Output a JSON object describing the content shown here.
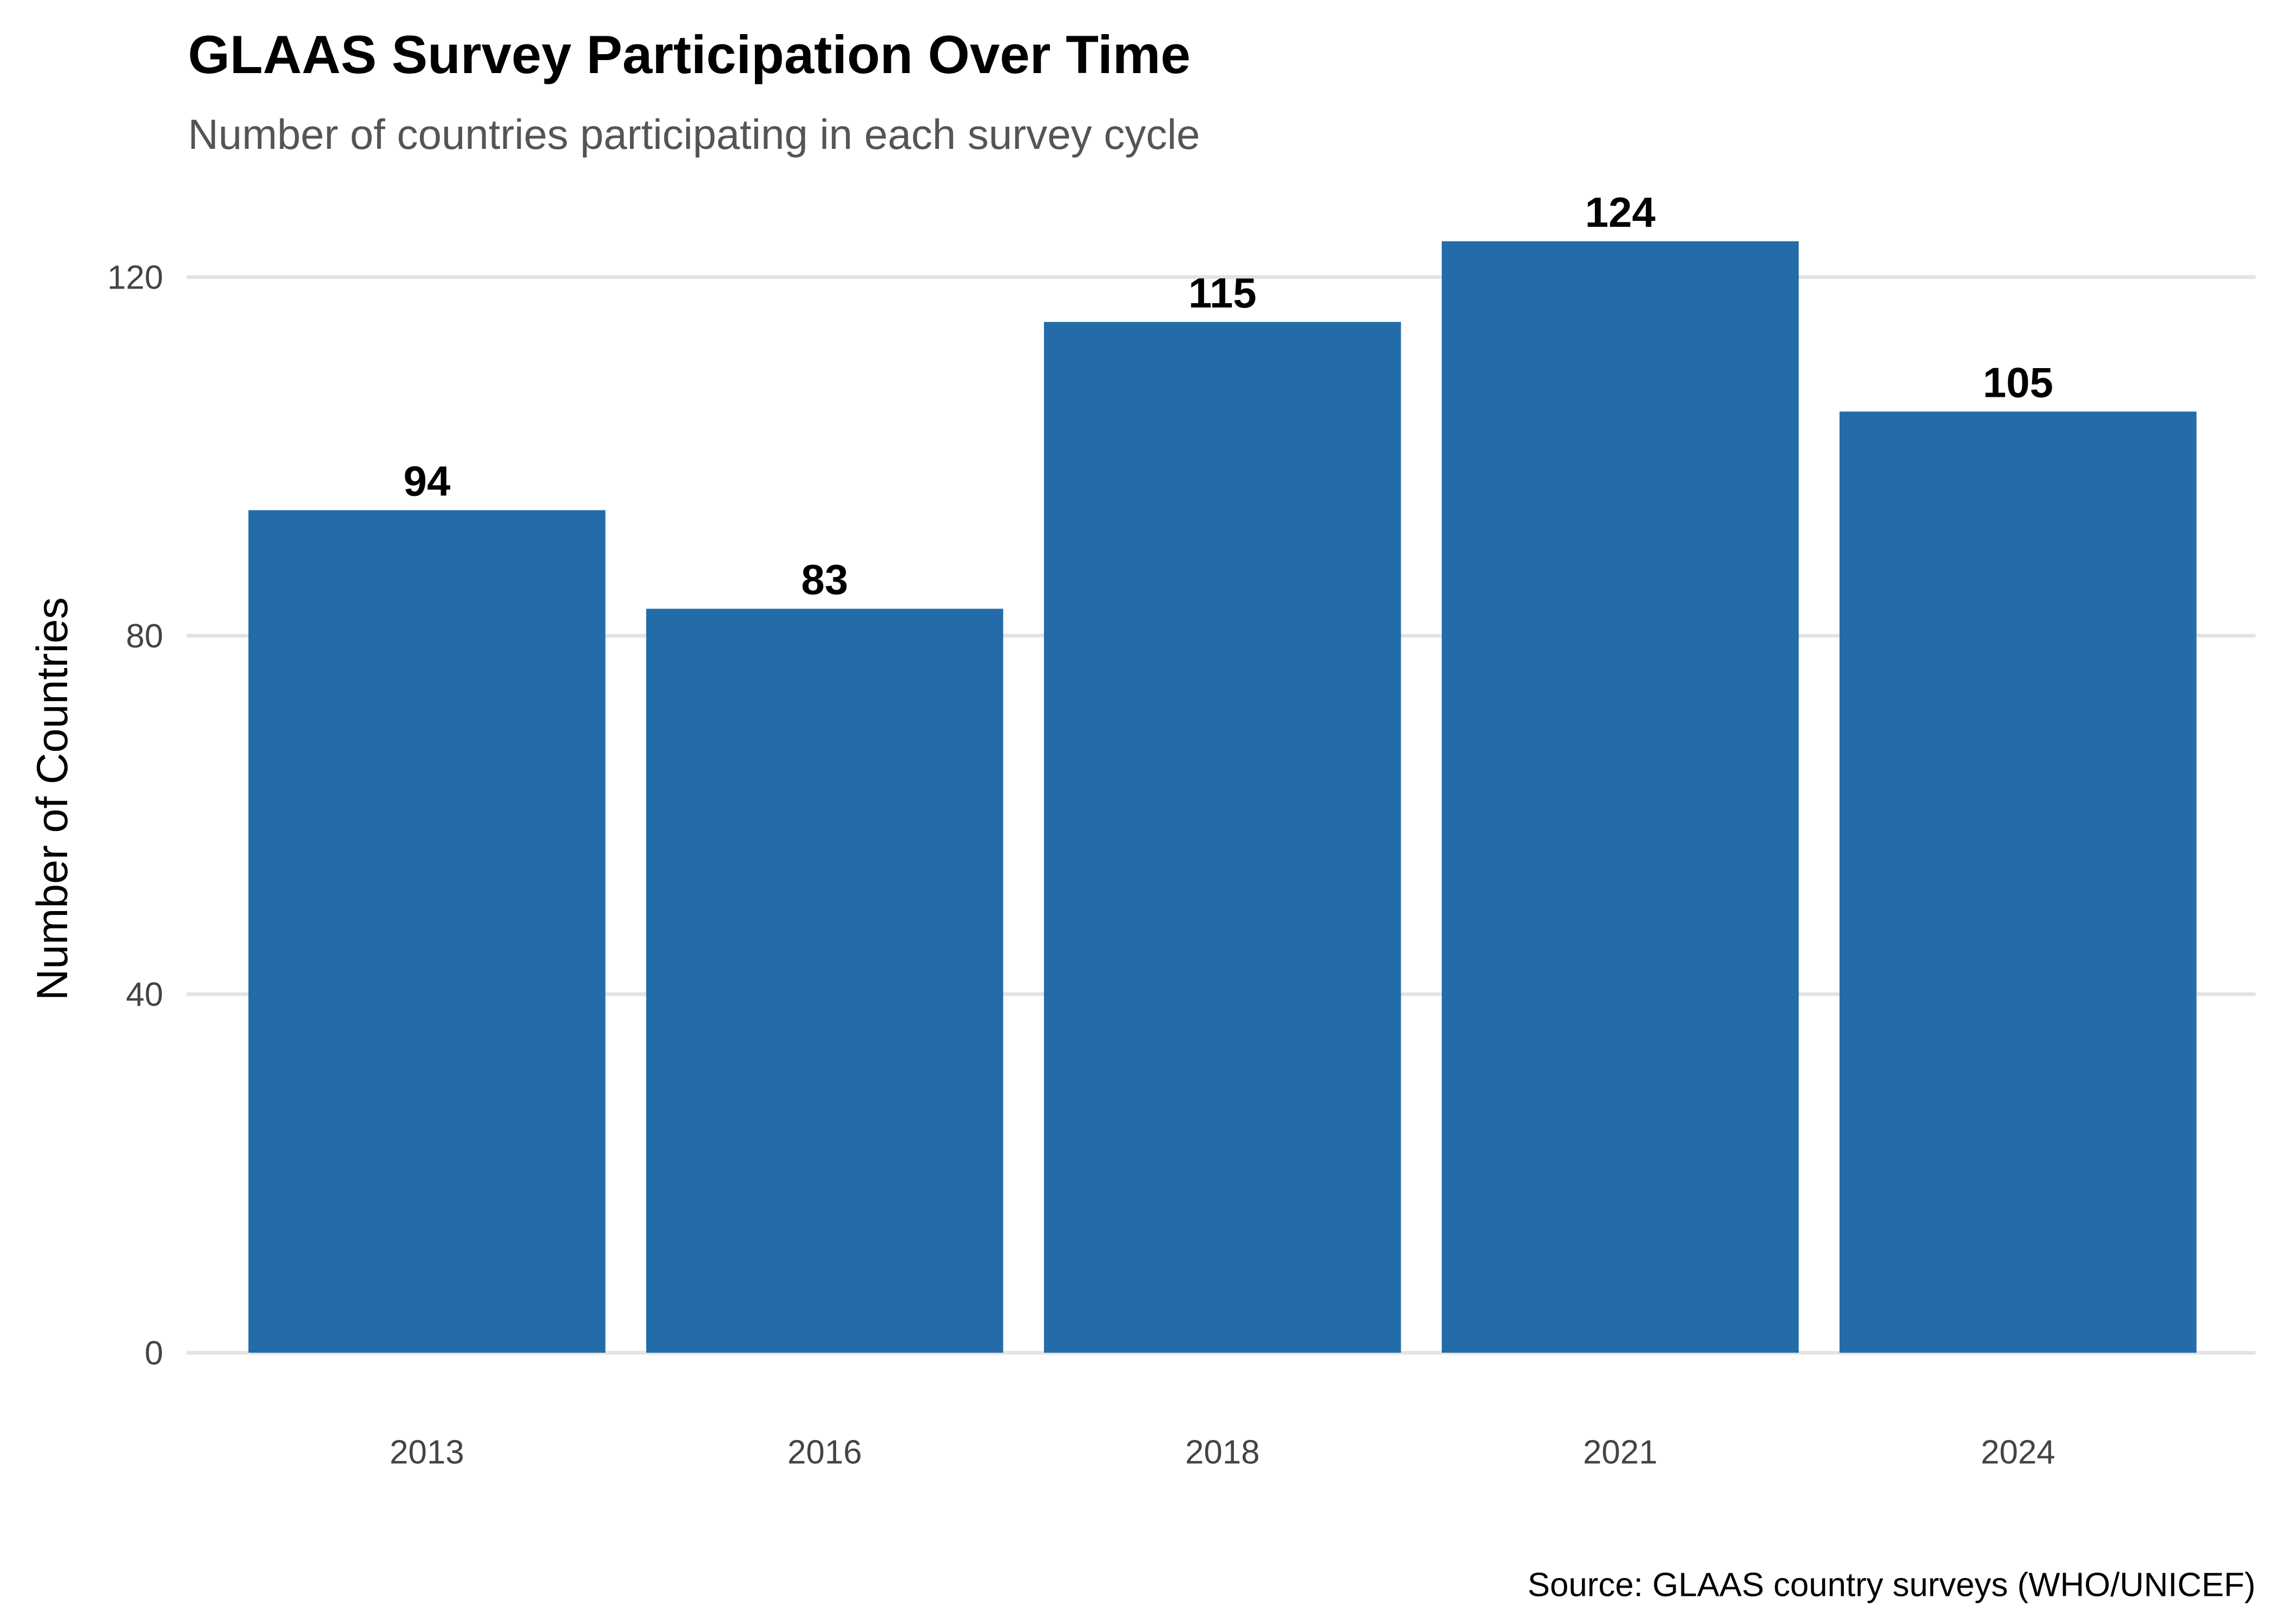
{
  "chart_data": {
    "type": "bar",
    "title": "GLAAS Survey Participation Over Time",
    "subtitle": "Number of countries participating in each survey cycle",
    "xlabel": "",
    "ylabel": "Number of Countries",
    "caption": "Source: GLAAS country surveys (WHO/UNICEF)",
    "categories": [
      "2013",
      "2016",
      "2018",
      "2021",
      "2024"
    ],
    "values": [
      94,
      83,
      115,
      124,
      105
    ],
    "data_labels": [
      "94",
      "83",
      "115",
      "124",
      "105"
    ],
    "ylim": [
      0,
      130
    ],
    "yticks": [
      0,
      40,
      80,
      120
    ],
    "ytick_labels": [
      "0",
      "40",
      "80",
      "120"
    ],
    "grid": "horizontal major",
    "legend": "none",
    "bar_color": "#236CA9"
  }
}
